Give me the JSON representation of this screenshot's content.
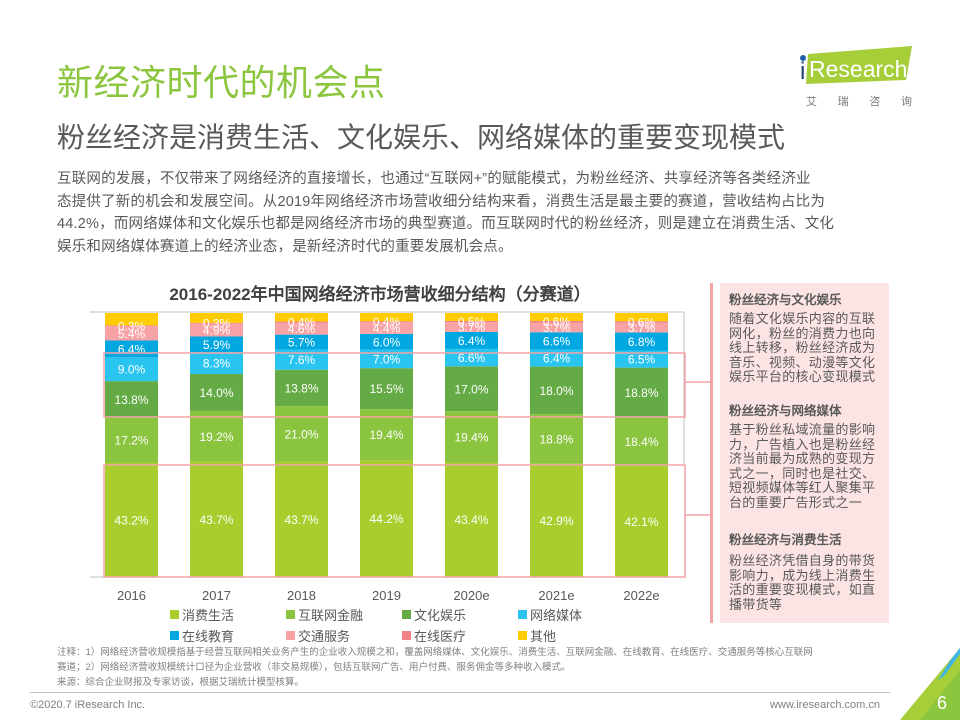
{
  "header": {
    "title": "新经济时代的机会点",
    "subtitle": "粉丝经济是消费生活、文化娱乐、网络媒体的重要变现模式"
  },
  "logo": {
    "brand_i": "i",
    "brand_rest": "Research",
    "cn_chars": [
      "艾",
      "瑞",
      "咨",
      "询"
    ],
    "brand_color": "#a6ce39",
    "dot_color": "#1f5fa8"
  },
  "intro": {
    "lines": [
      "互联网的发展，不仅带来了网络经济的直接增长，也通过“互联网+”的赋能模式，为粉丝经济、共享经济等各类经济业",
      "态提供了新的机会和发展空间。从2019年网络经济市场营收细分结构来看，消费生活是最主要的赛道，营收结构占比为",
      "44.2%，而网络媒体和文化娱乐也都是网络经济市场的典型赛道。而互联网时代的粉丝经济，则是建立在消费生活、文化",
      "娱乐和网络媒体赛道上的经济业态，是新经济时代的重要发展机会点。"
    ]
  },
  "chart_data": {
    "type": "bar",
    "stacked": true,
    "title": "2016-2022年中国网络经济市场营收细分结构（分赛道）",
    "xlabel": "",
    "ylabel": "",
    "unit": "%",
    "ylim": [
      0,
      100
    ],
    "grid": false,
    "legend_position": "bottom",
    "categories": [
      "2016",
      "2017",
      "2018",
      "2019",
      "2020e",
      "2021e",
      "2022e"
    ],
    "series": [
      {
        "name": "消费生活",
        "color": "#aacd2e",
        "show_labels": true,
        "values": [
          43.2,
          43.7,
          43.7,
          44.2,
          43.4,
          42.9,
          42.1
        ]
      },
      {
        "name": "互联网金融",
        "color": "#8bc43f",
        "show_labels": true,
        "values": [
          17.2,
          19.2,
          21.0,
          19.4,
          19.4,
          18.8,
          18.4
        ]
      },
      {
        "name": "文化娱乐",
        "color": "#65ab45",
        "show_labels": true,
        "values": [
          13.8,
          14.0,
          13.8,
          15.5,
          17.0,
          18.0,
          18.8
        ]
      },
      {
        "name": "网络媒体",
        "color": "#29c4f0",
        "show_labels": true,
        "values": [
          9.0,
          8.3,
          7.6,
          7.0,
          6.6,
          6.4,
          6.5
        ]
      },
      {
        "name": "在线教育",
        "color": "#00a7e1",
        "show_labels": true,
        "values": [
          6.4,
          5.9,
          5.7,
          6.0,
          6.4,
          6.6,
          6.8
        ]
      },
      {
        "name": "交通服务",
        "color": "#f7a3a5",
        "show_labels": true,
        "values": [
          5.4,
          4.9,
          4.6,
          4.4,
          3.7,
          3.7,
          3.7
        ]
      },
      {
        "name": "在线医疗",
        "color": "#f18185",
        "show_labels": true,
        "values": [
          0.3,
          0.3,
          0.4,
          0.4,
          0.5,
          0.6,
          0.6
        ]
      },
      {
        "name": "其他",
        "color": "#ffcc00",
        "show_labels": false,
        "values": [
          4.7,
          3.7,
          3.2,
          3.1,
          3.0,
          3.0,
          3.1
        ]
      }
    ],
    "legend": [
      "消费生活",
      "互联网金融",
      "文化娱乐",
      "网络媒体",
      "在线教育",
      "交通服务",
      "在线医疗",
      "其他"
    ]
  },
  "side_panel": {
    "accent_color": "#f4a3a6",
    "background": "#fce4e4",
    "sections": [
      {
        "heading": "粉丝经济与文化娱乐",
        "lines": [
          "随着文化娱乐内容的互联",
          "网化，粉丝的消费力也向",
          "线上转移，粉丝经济成为",
          "音乐、视频、动漫等文化",
          "娱乐平台的核心变现模式"
        ]
      },
      {
        "heading": "粉丝经济与网络媒体",
        "lines": [
          "基于粉丝私域流量的影响",
          "力，广告植入也是粉丝经",
          "济当前最为成熟的变现方",
          "式之一，同时也是社交、",
          "短视频媒体等红人聚集平",
          "台的重要广告形式之一"
        ]
      },
      {
        "heading": "粉丝经济与消费生活",
        "lines": [
          "粉丝经济凭借自身的带货",
          "影响力，成为线上消费生",
          "活的重要变现模式，如直",
          "播带货等"
        ]
      }
    ]
  },
  "footnotes": [
    "注释：1）网络经济营收规模指基于经营互联网相关业务产生的企业收入规模之和，覆盖网络媒体、文化娱乐、消费生活、互联网金融、在线教育、在线医疗、交通服务等核心互联网",
    "赛道；2）网络经济营收规模统计口径为企业营收（非交易规模），包括互联网广告、用户付费、服务佣金等多种收入模式。",
    "来源：综合企业财报及专家访谈，根据艾瑞统计模型核算。"
  ],
  "footer": {
    "copyright": "©2020.7 iResearch Inc.",
    "website": "www.iresearch.com.cn",
    "page_number": "6"
  }
}
